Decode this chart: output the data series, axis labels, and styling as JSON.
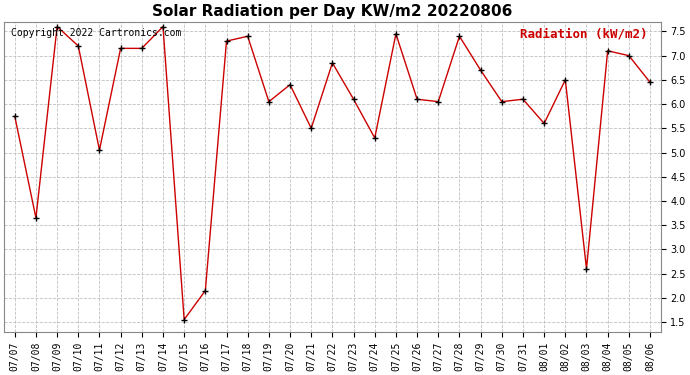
{
  "title": "Solar Radiation per Day KW/m2 20220806",
  "copyright_text": "Copyright 2022 Cartronics.com",
  "legend_label": "Radiation (kW/m2)",
  "dates": [
    "07/07",
    "07/08",
    "07/09",
    "07/10",
    "07/11",
    "07/12",
    "07/13",
    "07/14",
    "07/15",
    "07/16",
    "07/17",
    "07/18",
    "07/19",
    "07/20",
    "07/21",
    "07/22",
    "07/23",
    "07/24",
    "07/25",
    "07/26",
    "07/27",
    "07/28",
    "07/29",
    "07/30",
    "07/31",
    "08/01",
    "08/02",
    "08/03",
    "08/04",
    "08/05",
    "08/06"
  ],
  "values": [
    5.75,
    3.65,
    7.6,
    7.2,
    5.05,
    7.15,
    7.15,
    7.6,
    1.55,
    2.15,
    7.3,
    7.4,
    6.05,
    6.4,
    5.5,
    6.85,
    6.1,
    5.3,
    7.45,
    6.1,
    6.05,
    7.4,
    6.7,
    6.05,
    6.1,
    5.6,
    6.5,
    2.6,
    7.1,
    7.0,
    6.45
  ],
  "ylim": [
    1.3,
    7.7
  ],
  "yticks": [
    1.5,
    2.0,
    2.5,
    3.0,
    3.5,
    4.0,
    4.5,
    5.0,
    5.5,
    6.0,
    6.5,
    7.0,
    7.5
  ],
  "line_color": "#cc0000",
  "marker_color": "#000000",
  "bg_color": "#ffffff",
  "grid_color": "#c0c0c0",
  "title_fontsize": 11,
  "copyright_fontsize": 7,
  "legend_fontsize": 9,
  "tick_fontsize": 7
}
